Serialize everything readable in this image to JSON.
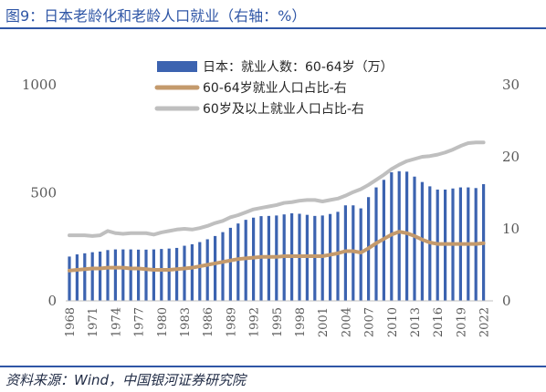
{
  "header": {
    "title": "图9：日本老龄化和老龄人口就业（右轴：%）"
  },
  "footer": {
    "source": "资料来源：Wind，中国银河证券研究院"
  },
  "colors": {
    "accent": "#2f56a6",
    "bar": "#3c63b0",
    "line_60_64": "#c49a6c",
    "line_60plus": "#bfbfbf",
    "axis_text": "#595959"
  },
  "chart_data": {
    "type": "bar",
    "x_tick_labels": [
      "1968",
      "1971",
      "1974",
      "1977",
      "1980",
      "1983",
      "1986",
      "1989",
      "1992",
      "1995",
      "1998",
      "2001",
      "2004",
      "2007",
      "2010",
      "2013",
      "2016",
      "2019",
      "2022"
    ],
    "y_left_ticks": [
      "0",
      "500",
      "1000"
    ],
    "y_right_ticks": [
      "0",
      "10",
      "20",
      "30"
    ],
    "y_left_lim": [
      0,
      1000
    ],
    "y_right_lim": [
      0,
      30
    ],
    "legend_position": "top-center",
    "grid": false,
    "x": [
      1968,
      1969,
      1970,
      1971,
      1972,
      1973,
      1974,
      1975,
      1976,
      1977,
      1978,
      1979,
      1980,
      1981,
      1982,
      1983,
      1984,
      1985,
      1986,
      1987,
      1988,
      1989,
      1990,
      1991,
      1992,
      1993,
      1994,
      1995,
      1996,
      1997,
      1998,
      1999,
      2000,
      2001,
      2002,
      2003,
      2004,
      2005,
      2006,
      2007,
      2008,
      2009,
      2010,
      2011,
      2012,
      2013,
      2014,
      2015,
      2016,
      2017,
      2018,
      2019,
      2020,
      2021,
      2022
    ],
    "series": [
      {
        "name": "日本：就业人数：60-64岁（万）",
        "type": "bar",
        "axis": "left",
        "values": [
          205,
          215,
          220,
          225,
          228,
          235,
          238,
          238,
          238,
          237,
          237,
          238,
          240,
          242,
          245,
          255,
          262,
          272,
          285,
          300,
          318,
          338,
          358,
          375,
          385,
          392,
          393,
          395,
          400,
          405,
          403,
          398,
          393,
          395,
          402,
          412,
          442,
          442,
          428,
          480,
          525,
          560,
          595,
          600,
          598,
          575,
          550,
          530,
          515,
          515,
          520,
          525,
          525,
          522,
          540
        ]
      },
      {
        "name": "60-64岁就业人口占比-右",
        "type": "line",
        "axis": "right",
        "values": [
          4.2,
          4.3,
          4.4,
          4.5,
          4.5,
          4.6,
          4.6,
          4.6,
          4.5,
          4.5,
          4.4,
          4.3,
          4.3,
          4.3,
          4.4,
          4.5,
          4.6,
          4.8,
          5.0,
          5.2,
          5.4,
          5.6,
          5.8,
          5.9,
          6.0,
          6.1,
          6.1,
          6.1,
          6.2,
          6.2,
          6.2,
          6.2,
          6.2,
          6.2,
          6.4,
          6.6,
          6.9,
          6.9,
          6.7,
          7.3,
          8.0,
          8.6,
          9.2,
          9.6,
          9.4,
          9.0,
          8.5,
          8.1,
          7.9,
          7.9,
          7.9,
          7.9,
          7.9,
          7.9,
          8.0
        ]
      },
      {
        "name": "60岁及以上就业人口占比-右",
        "type": "line",
        "axis": "right",
        "values": [
          9.1,
          9.1,
          9.1,
          9.0,
          9.1,
          9.7,
          9.4,
          9.3,
          9.4,
          9.4,
          9.4,
          9.2,
          9.5,
          9.7,
          9.9,
          10.0,
          9.9,
          10.1,
          10.4,
          10.8,
          11.1,
          11.6,
          11.9,
          12.3,
          12.7,
          12.9,
          13.1,
          13.3,
          13.6,
          13.7,
          13.9,
          14.0,
          14.0,
          13.8,
          14.0,
          14.2,
          14.6,
          15.1,
          15.5,
          16.1,
          16.8,
          17.5,
          18.3,
          18.9,
          19.4,
          19.7,
          20.0,
          20.1,
          20.3,
          20.6,
          21.0,
          21.5,
          21.9,
          22.0,
          22.0
        ]
      }
    ]
  }
}
